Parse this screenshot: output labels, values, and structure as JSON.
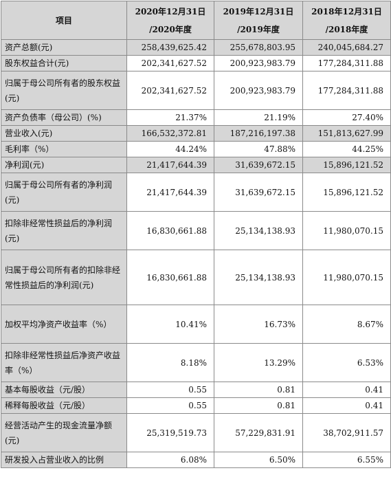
{
  "header": {
    "item": "项目",
    "col1": [
      "2020年12月31日",
      "/2020年度"
    ],
    "col2": [
      "2019年12月31日",
      "/2019年度"
    ],
    "col3": [
      "2018年12月31日",
      "/2018年度"
    ]
  },
  "rows": [
    {
      "label": "资产总额(元)",
      "values": [
        "258,439,625.42",
        "255,678,803.95",
        "240,045,684.27"
      ]
    },
    {
      "label": "股东权益合计(元)",
      "values": [
        "202,341,627.52",
        "200,923,983.79",
        "177,284,311.88"
      ]
    },
    {
      "label": "归属于母公司所有者的股东权益(元)",
      "values": [
        "202,341,627.52",
        "200,923,983.79",
        "177,284,311.88"
      ]
    },
    {
      "label": "资产负债率（母公司）(%)",
      "values": [
        "21.37%",
        "21.19%",
        "27.40%"
      ]
    },
    {
      "label": "营业收入(元)",
      "values": [
        "166,532,372.81",
        "187,216,197.38",
        "151,813,627.99"
      ]
    },
    {
      "label": "毛利率（%）",
      "values": [
        "44.24%",
        "47.88%",
        "44.25%"
      ]
    },
    {
      "label": "净利润(元)",
      "values": [
        "21,417,644.39",
        "31,639,672.15",
        "15,896,121.52"
      ]
    },
    {
      "label": "归属于母公司所有者的净利润(元)",
      "values": [
        "21,417,644.39",
        "31,639,672.15",
        "15,896,121.52"
      ]
    },
    {
      "label": "扣除非经常性损益后的净利润(元)",
      "values": [
        "16,830,661.88",
        "25,134,138.93",
        "11,980,070.15"
      ]
    },
    {
      "label": "归属于母公司所有者的扣除非经常性损益后的净利润(元)",
      "values": [
        "16,830,661.88",
        "25,134,138.93",
        "11,980,070.15"
      ]
    },
    {
      "label": "加权平均净资产收益率（%）",
      "values": [
        "10.41%",
        "16.73%",
        "8.67%"
      ]
    },
    {
      "label": "扣除非经常性损益后净资产收益率（%）",
      "values": [
        "8.18%",
        "13.29%",
        "6.53%"
      ]
    },
    {
      "label": "基本每股收益（元/股）",
      "values": [
        "0.55",
        "0.81",
        "0.41"
      ]
    },
    {
      "label": "稀释每股收益（元/股）",
      "values": [
        "0.55",
        "0.81",
        "0.41"
      ]
    },
    {
      "label": "经营活动产生的现金流量净额(元)",
      "values": [
        "25,319,519.73",
        "57,229,831.91",
        "38,702,911.57"
      ]
    },
    {
      "label": "研发投入占营业收入的比例",
      "values": [
        "6.08%",
        "6.50%",
        "6.55%"
      ]
    }
  ]
}
